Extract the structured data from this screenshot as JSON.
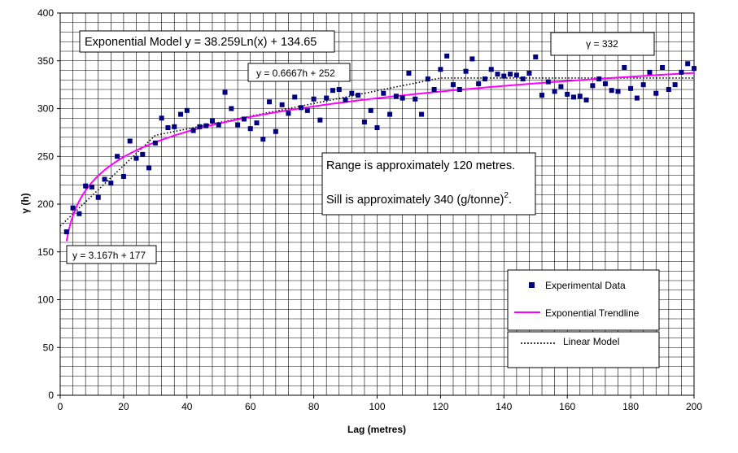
{
  "chart_data": {
    "type": "scatter",
    "xlabel": "Lag (metres)",
    "ylabel": "γ (h)",
    "xlim": [
      0,
      200
    ],
    "ylim": [
      0,
      400
    ],
    "xticks": [
      0,
      20,
      40,
      60,
      80,
      100,
      120,
      140,
      160,
      180,
      200
    ],
    "yticks": [
      0,
      50,
      100,
      150,
      200,
      250,
      300,
      350,
      400
    ],
    "grid": true,
    "legend_position": "bottom-right",
    "legend": {
      "experimental": "Experimental Data",
      "exponential": "Exponential Trendline",
      "linear": "Linear Model"
    },
    "colors": {
      "experimental": "#000080",
      "exponential": "#ff00ff",
      "linear": "#000000",
      "grid": "#000000"
    },
    "annotations": {
      "exponential_model": "Exponential Model y = 38.259Ln(x) + 134.65",
      "linear_1": "y = 3.167h + 177",
      "linear_2": "y = 0.6667h + 252",
      "sill_const": "γ = 332",
      "range_text": "Range is approximately 120 metres.",
      "sill_text_main": "Sill is approximately 340 (g/tonne)",
      "sill_text_sup": "2",
      "sill_text_end": "."
    },
    "series": [
      {
        "name": "Experimental Data",
        "kind": "points",
        "x": [
          2,
          4,
          6,
          8,
          10,
          12,
          14,
          16,
          18,
          20,
          22,
          24,
          26,
          28,
          30,
          32,
          34,
          36,
          38,
          40,
          42,
          44,
          46,
          48,
          50,
          52,
          54,
          56,
          58,
          60,
          62,
          64,
          66,
          68,
          70,
          72,
          74,
          76,
          78,
          80,
          82,
          84,
          86,
          88,
          90,
          92,
          94,
          96,
          98,
          100,
          102,
          104,
          106,
          108,
          110,
          112,
          114,
          116,
          118,
          120,
          122,
          124,
          126,
          128,
          130,
          132,
          134,
          136,
          138,
          140,
          142,
          144,
          146,
          148,
          150,
          152,
          154,
          156,
          158,
          160,
          162,
          164,
          166,
          168,
          170,
          172,
          174,
          176,
          178,
          180,
          182,
          184,
          186,
          188,
          190,
          192,
          194,
          196,
          198,
          200
        ],
        "y": [
          171,
          196,
          190,
          219,
          218,
          207,
          226,
          222,
          250,
          229,
          266,
          248,
          252,
          238,
          264,
          290,
          280,
          281,
          294,
          298,
          277,
          281,
          282,
          287,
          283,
          317,
          300,
          283,
          289,
          279,
          285,
          268,
          307,
          276,
          304,
          295,
          312,
          301,
          298,
          310,
          288,
          311,
          319,
          320,
          309,
          316,
          314,
          286,
          298,
          280,
          316,
          294,
          313,
          311,
          337,
          310,
          294,
          331,
          320,
          341,
          355,
          325,
          320,
          339,
          352,
          326,
          331,
          341,
          336,
          334,
          336,
          335,
          331,
          337,
          354,
          314,
          328,
          318,
          323,
          315,
          312,
          313,
          309,
          324,
          331,
          326,
          319,
          318,
          343,
          321,
          311,
          325,
          338,
          316,
          343,
          320,
          325,
          338,
          347,
          342
        ]
      },
      {
        "name": "Exponential Trendline",
        "kind": "function",
        "formula": "38.259*ln(x) + 134.65",
        "x_range": [
          2,
          200
        ]
      },
      {
        "name": "Linear Model",
        "kind": "segments",
        "points": [
          [
            0,
            177
          ],
          [
            30,
            272
          ],
          [
            120,
            332
          ],
          [
            200,
            332
          ]
        ]
      }
    ]
  }
}
